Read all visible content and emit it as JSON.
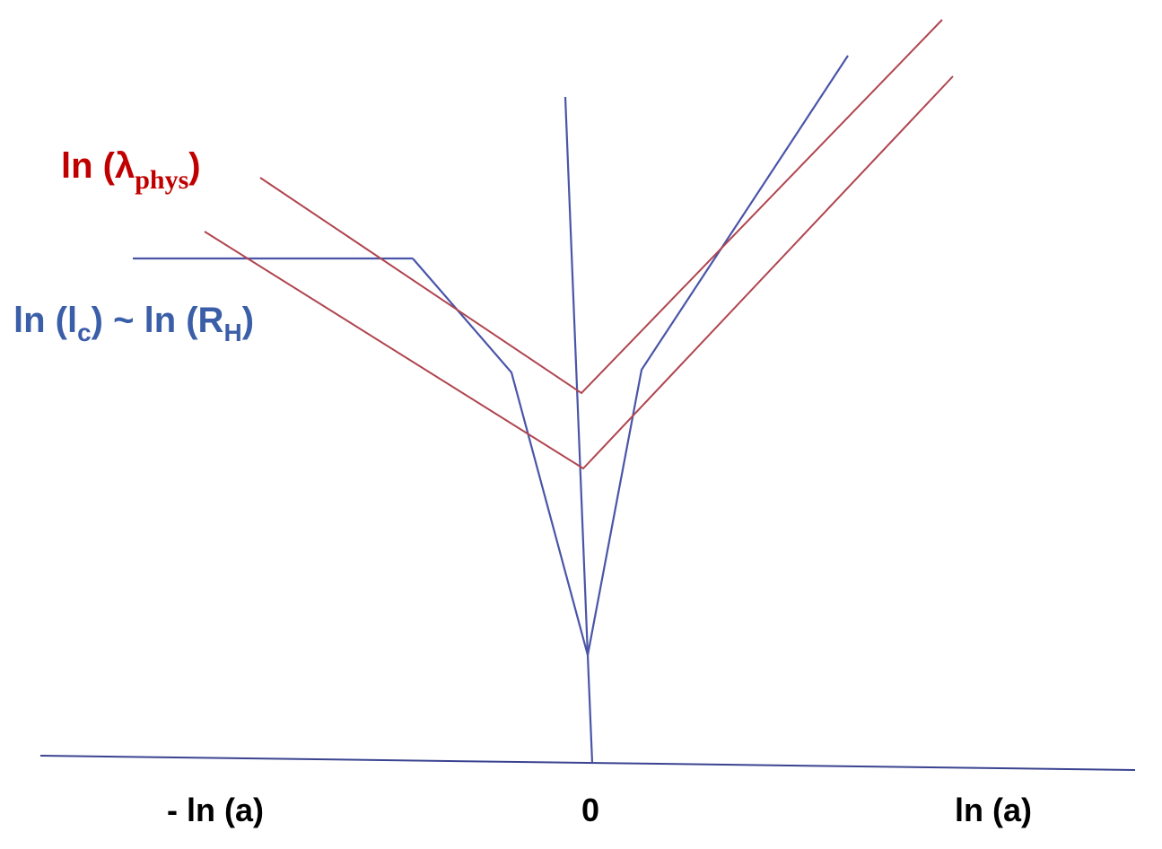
{
  "labels": {
    "lambda": {
      "main": "ln (λ",
      "sub": "phys",
      "close": ")"
    },
    "current": {
      "part1": "ln (l",
      "sub1": "c",
      "part2": ") ~ ln (R",
      "sub2": "H",
      "close": ")"
    }
  },
  "x_axis": {
    "labels": [
      "- ln (a)",
      "0",
      "ln (a)"
    ]
  }
}
